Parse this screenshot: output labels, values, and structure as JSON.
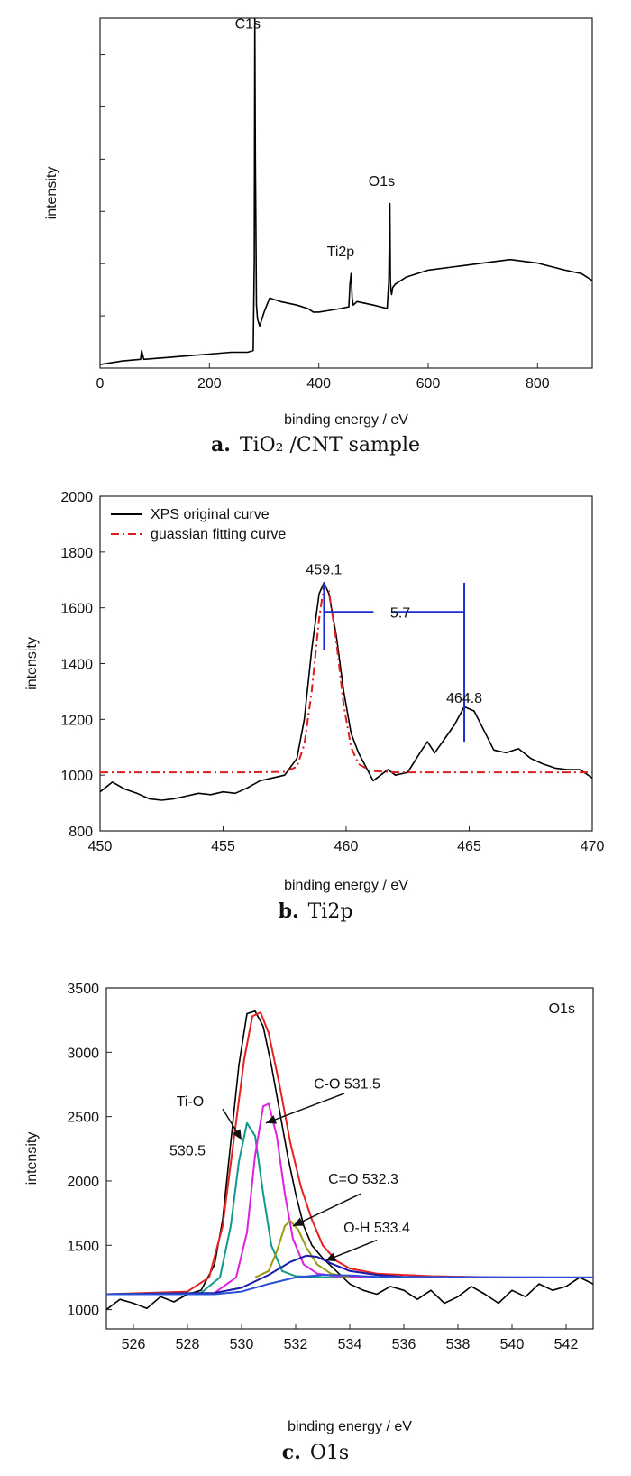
{
  "chart_data": [
    {
      "id": "a",
      "type": "line",
      "caption": {
        "letter": "a.",
        "text": "TiO₂ /CNT sample"
      },
      "xlabel": "binding energy / eV",
      "ylabel": "intensity",
      "xlim": [
        0,
        900
      ],
      "xticks": [
        0,
        200,
        400,
        600,
        800
      ],
      "ylim": [
        0,
        100
      ],
      "yticks_unlabeled": true,
      "series": [
        {
          "color": "#000000",
          "x": [
            0,
            40,
            74,
            76,
            80,
            120,
            160,
            200,
            240,
            270,
            280,
            282,
            283,
            284,
            285,
            286,
            288,
            292,
            300,
            310,
            330,
            360,
            380,
            390,
            400,
            420,
            440,
            455,
            457,
            459,
            461,
            463,
            470,
            500,
            525,
            528,
            530,
            531,
            532,
            533,
            535,
            540,
            560,
            580,
            600,
            650,
            700,
            750,
            800,
            850,
            880,
            900
          ],
          "y": [
            1,
            2,
            2.5,
            5,
            2.5,
            3,
            3.5,
            4,
            4.5,
            4.5,
            5,
            30,
            100,
            60,
            40,
            18,
            14,
            12,
            16,
            20,
            19,
            18,
            17,
            16,
            16,
            16.5,
            17,
            17.5,
            24,
            27,
            20,
            18,
            19,
            18,
            17,
            25,
            47,
            25,
            22,
            21,
            23,
            24,
            26,
            27,
            28,
            29,
            30,
            31,
            30,
            28,
            27,
            25
          ]
        }
      ],
      "annotations": [
        {
          "text": "C1s",
          "x": 270,
          "y": 97
        },
        {
          "text": "O1s",
          "x": 515,
          "y": 52
        },
        {
          "text": "Ti2p",
          "x": 440,
          "y": 32
        }
      ]
    },
    {
      "id": "b",
      "type": "line",
      "caption": {
        "letter": "b.",
        "text": "Ti2p"
      },
      "xlabel": "binding energy / eV",
      "ylabel": "intensity",
      "xlim": [
        450,
        470
      ],
      "xticks": [
        450,
        455,
        460,
        465,
        470
      ],
      "ylim": [
        800,
        2000
      ],
      "yticks": [
        800,
        1000,
        1200,
        1400,
        1600,
        1800,
        2000
      ],
      "legend": {
        "placement": "top-left",
        "entries": [
          "XPS original curve",
          "guassian fitting curve"
        ]
      },
      "series": [
        {
          "name": "XPS original curve",
          "color": "#000000",
          "style": "solid",
          "x": [
            450,
            450.5,
            451,
            451.5,
            452,
            452.5,
            453,
            453.5,
            454,
            454.5,
            455,
            455.5,
            456,
            456.5,
            457,
            457.5,
            458,
            458.3,
            458.6,
            458.9,
            459.1,
            459.3,
            459.6,
            459.9,
            460.2,
            460.5,
            460.8,
            461.1,
            461.4,
            461.7,
            462,
            462.5,
            463,
            463.3,
            463.6,
            464,
            464.4,
            464.8,
            465.2,
            465.6,
            466,
            466.5,
            467,
            467.5,
            468,
            468.5,
            469,
            469.5,
            470
          ],
          "y": [
            940,
            975,
            950,
            935,
            915,
            910,
            915,
            925,
            935,
            930,
            940,
            935,
            955,
            980,
            990,
            1000,
            1060,
            1200,
            1450,
            1650,
            1690,
            1650,
            1500,
            1300,
            1150,
            1080,
            1030,
            980,
            1000,
            1020,
            1000,
            1010,
            1080,
            1120,
            1080,
            1130,
            1180,
            1245,
            1230,
            1160,
            1090,
            1080,
            1095,
            1060,
            1040,
            1025,
            1020,
            1020,
            990
          ]
        },
        {
          "name": "guassian fitting curve",
          "color": "#dd1e1e",
          "style": "dashdot",
          "x": [
            450,
            456,
            457.5,
            458,
            458.3,
            458.6,
            458.9,
            459.1,
            459.3,
            459.6,
            459.9,
            460.2,
            460.5,
            461,
            462,
            465,
            470
          ],
          "y": [
            1010,
            1010,
            1012,
            1030,
            1110,
            1300,
            1560,
            1680,
            1660,
            1480,
            1250,
            1100,
            1040,
            1015,
            1010,
            1010,
            1010
          ]
        }
      ],
      "annotations": [
        {
          "text": "459.1",
          "x": 459.1,
          "y": 1720
        },
        {
          "text": "464.8",
          "x": 464.8,
          "y": 1260
        },
        {
          "text": "5.7",
          "x": 462.2,
          "y": 1585
        }
      ],
      "markers": [
        {
          "x": 459.1,
          "y0": 1450,
          "y1": 1690,
          "color": "#1f2fd0"
        },
        {
          "x": 464.8,
          "y0": 1120,
          "y1": 1690,
          "color": "#1f2fd0"
        }
      ],
      "span": {
        "x0": 459.1,
        "x1": 464.8,
        "y": 1585,
        "color": "#1f2fd0"
      }
    },
    {
      "id": "c",
      "type": "line",
      "caption": {
        "letter": "c.",
        "text": "O1s"
      },
      "xlabel": "binding energy / eV",
      "ylabel": "intensity",
      "xlim": [
        525,
        543
      ],
      "xticks": [
        526,
        528,
        530,
        532,
        534,
        536,
        538,
        540,
        542
      ],
      "ylim": [
        850,
        3500
      ],
      "yticks": [
        1000,
        1500,
        2000,
        2500,
        3000,
        3500
      ],
      "corner_label": "O1s",
      "series": [
        {
          "color": "#000000",
          "x": [
            525,
            525.5,
            526,
            526.5,
            527,
            527.5,
            528,
            528.5,
            529,
            529.3,
            529.6,
            529.9,
            530.2,
            530.5,
            530.8,
            531.1,
            531.4,
            531.7,
            532,
            532.3,
            532.6,
            533,
            533.5,
            534,
            534.5,
            535,
            535.5,
            536,
            536.5,
            537,
            537.5,
            538,
            538.5,
            539,
            539.5,
            540,
            540.5,
            541,
            541.5,
            542,
            542.5,
            543
          ],
          "y": [
            1000,
            1080,
            1050,
            1010,
            1100,
            1060,
            1120,
            1150,
            1350,
            1700,
            2300,
            2900,
            3300,
            3320,
            3200,
            2900,
            2550,
            2200,
            1900,
            1650,
            1500,
            1400,
            1300,
            1200,
            1150,
            1120,
            1180,
            1150,
            1080,
            1150,
            1050,
            1100,
            1180,
            1120,
            1050,
            1150,
            1100,
            1200,
            1150,
            1180,
            1250,
            1200
          ]
        },
        {
          "color": "#e8201e",
          "x": [
            525,
            528,
            528.8,
            529.3,
            529.7,
            530.1,
            530.4,
            530.7,
            531,
            531.4,
            531.8,
            532.2,
            532.6,
            533,
            533.5,
            534,
            535,
            537,
            539.5
          ],
          "y": [
            1120,
            1140,
            1250,
            1650,
            2300,
            2950,
            3280,
            3310,
            3150,
            2750,
            2300,
            1950,
            1700,
            1500,
            1380,
            1320,
            1280,
            1260,
            1250
          ]
        },
        {
          "color": "#0f9a8a",
          "x": [
            525,
            528.5,
            529.2,
            529.6,
            529.9,
            530.2,
            530.5,
            530.8,
            531.1,
            531.5,
            532,
            533,
            535,
            537
          ],
          "y": [
            1120,
            1130,
            1250,
            1650,
            2150,
            2450,
            2350,
            1900,
            1500,
            1300,
            1260,
            1250,
            1250,
            1250
          ]
        },
        {
          "color": "#e020e0",
          "x": [
            529,
            529.8,
            530.2,
            530.5,
            530.8,
            531,
            531.3,
            531.6,
            531.9,
            532.3,
            532.8,
            533.5,
            535
          ],
          "y": [
            1130,
            1250,
            1600,
            2200,
            2580,
            2600,
            2350,
            1900,
            1550,
            1350,
            1280,
            1260,
            1250
          ]
        },
        {
          "color": "#9a9a10",
          "x": [
            530.5,
            531,
            531.3,
            531.6,
            531.8,
            532.1,
            532.4,
            532.8,
            533.3,
            534
          ],
          "y": [
            1250,
            1300,
            1450,
            1650,
            1690,
            1620,
            1480,
            1350,
            1280,
            1250
          ]
        },
        {
          "color": "#1a1aa8",
          "x": [
            525,
            529,
            530,
            531,
            531.8,
            532.4,
            532.8,
            533.3,
            534,
            535,
            536,
            538,
            543
          ],
          "y": [
            1120,
            1130,
            1170,
            1270,
            1370,
            1420,
            1410,
            1360,
            1300,
            1270,
            1255,
            1250,
            1250
          ]
        },
        {
          "color": "#2a50d8",
          "x": [
            525,
            529,
            530,
            531,
            532,
            533,
            534,
            535,
            543
          ],
          "y": [
            1120,
            1120,
            1140,
            1200,
            1250,
            1270,
            1265,
            1255,
            1250
          ]
        }
      ],
      "annotations": [
        {
          "text": "C-O 531.5",
          "x": 533.9,
          "y": 2720
        },
        {
          "text": "Ti-O",
          "x": 528.1,
          "y": 2580
        },
        {
          "text": "530.5",
          "x": 528.0,
          "y": 2200
        },
        {
          "text": "C=O  532.3",
          "x": 534.5,
          "y": 1980
        },
        {
          "text": "O-H    533.4",
          "x": 535.0,
          "y": 1600
        }
      ],
      "arrows": [
        {
          "x0": 533.8,
          "y0": 2680,
          "x1": 530.9,
          "y1": 2450
        },
        {
          "x0": 529.3,
          "y0": 2560,
          "x1": 530.0,
          "y1": 2320
        },
        {
          "x0": 534.4,
          "y0": 1900,
          "x1": 531.9,
          "y1": 1650
        },
        {
          "x0": 535.0,
          "y0": 1540,
          "x1": 533.1,
          "y1": 1380
        }
      ]
    }
  ]
}
